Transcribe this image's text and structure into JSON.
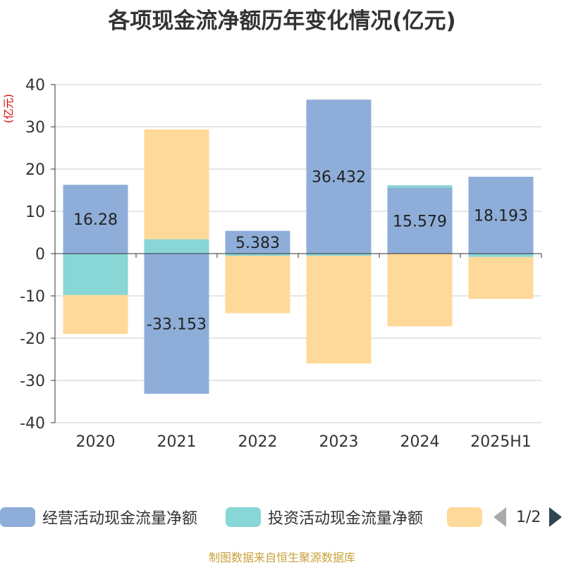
{
  "title": "各项现金流净额历年变化情况(亿元)",
  "unit_label": "(亿元)",
  "source": "制图数据来自恒生聚源数据库",
  "legend": {
    "items": [
      {
        "label": "经营活动现金流量净额",
        "color": "#8eaed9"
      },
      {
        "label": "投资活动现金流量净额",
        "color": "#88d6d6"
      },
      {
        "label": "",
        "color": "#ffd999"
      }
    ],
    "page": "1/2"
  },
  "chart_data": {
    "type": "bar",
    "stacked": true,
    "categories": [
      "2020",
      "2021",
      "2022",
      "2023",
      "2024",
      "2025H1"
    ],
    "ylim": [
      -40,
      40
    ],
    "yticks": [
      40,
      30,
      20,
      10,
      0,
      -10,
      -20,
      -30,
      -40
    ],
    "grid": true,
    "series": [
      {
        "name": "经营活动现金流量净额",
        "color": "#8eaed9",
        "values": [
          16.28,
          -33.153,
          5.383,
          36.432,
          15.579,
          18.193
        ],
        "labels": [
          "16.28",
          "-33.153",
          "5.383",
          "36.432",
          "15.579",
          "18.193"
        ]
      },
      {
        "name": "投资活动现金流量净额",
        "color": "#88d6d6",
        "values": [
          -9.8,
          3.4,
          -0.5,
          -0.5,
          0.6,
          -0.8
        ]
      },
      {
        "name": "",
        "color": "#ffd999",
        "values": [
          -9.2,
          26.0,
          -13.6,
          -25.5,
          -17.2,
          -9.9
        ]
      }
    ]
  }
}
